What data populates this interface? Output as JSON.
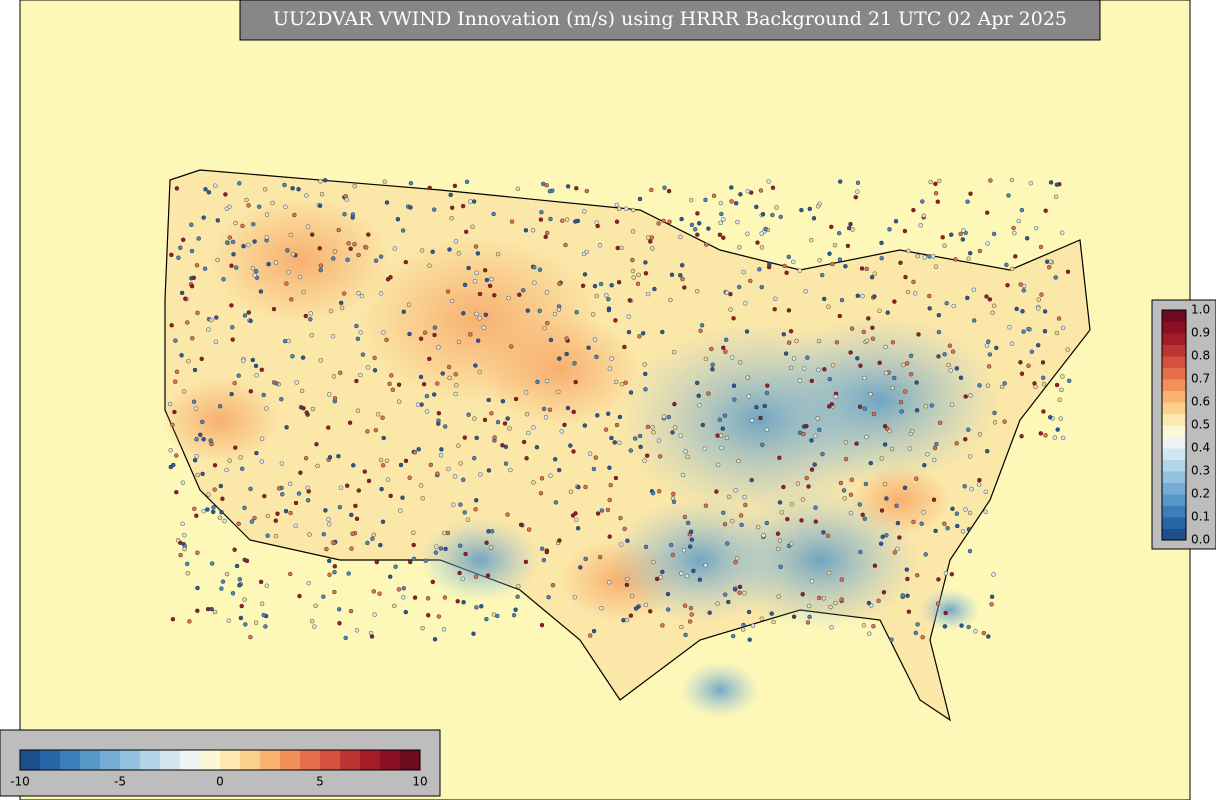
{
  "title": "UU2DVAR VWIND Innovation (m/s) using HRRR Background 21 UTC 02 Apr 2025",
  "colorbars": [
    {
      "ticks": [
        "-10",
        "-5",
        "0",
        "5",
        "10"
      ]
    },
    {
      "ticks": [
        "0.0",
        "0.1",
        "0.2",
        "0.3",
        "0.4",
        "0.5",
        "0.6",
        "0.7",
        "0.8",
        "0.9",
        "1.0"
      ]
    }
  ]
}
